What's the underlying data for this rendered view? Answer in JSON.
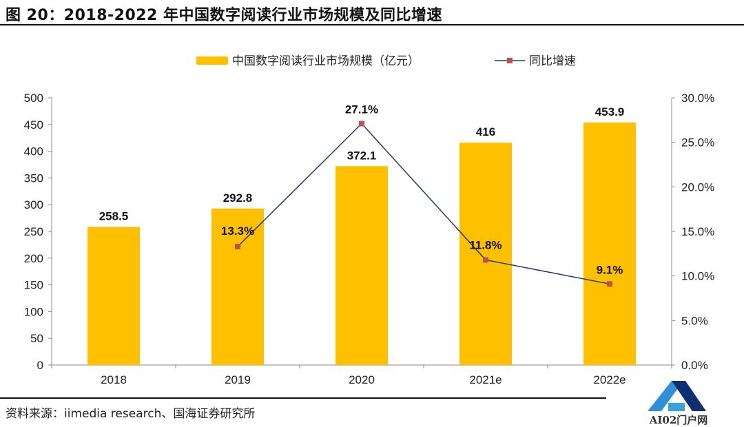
{
  "title": "图 20：2018-2022 年中国数字阅读行业市场规模及同比增速",
  "source": "资料来源：iimedia research、国海证券研究所",
  "watermark": "AI02门户网",
  "chart_data": {
    "type": "bar+line",
    "categories": [
      "2018",
      "2019",
      "2020",
      "2021e",
      "2022e"
    ],
    "series": [
      {
        "name": "中国数字阅读行业市场规模（亿元）",
        "type": "bar",
        "axis": "left",
        "color": "#FFC000",
        "values": [
          258.5,
          292.8,
          372.1,
          416,
          453.9
        ],
        "labels": [
          "258.5",
          "292.8",
          "372.1",
          "416",
          "453.9"
        ]
      },
      {
        "name": "同比增速",
        "type": "line",
        "axis": "right",
        "color": "#1F3A6E",
        "marker_color": "#C0504D",
        "values": [
          null,
          13.3,
          27.1,
          11.8,
          9.1
        ],
        "labels": [
          "",
          "13.3%",
          "27.1%",
          "11.8%",
          "9.1%"
        ]
      }
    ],
    "left_axis": {
      "ylim": [
        0,
        500
      ],
      "ticks": [
        "0",
        "50",
        "100",
        "150",
        "200",
        "250",
        "300",
        "350",
        "400",
        "450",
        "500"
      ]
    },
    "right_axis": {
      "ylim": [
        0,
        30
      ],
      "ticks": [
        "0.0%",
        "5.0%",
        "10.0%",
        "15.0%",
        "20.0%",
        "25.0%",
        "30.0%"
      ]
    },
    "legend": "top-center",
    "grid": false
  }
}
